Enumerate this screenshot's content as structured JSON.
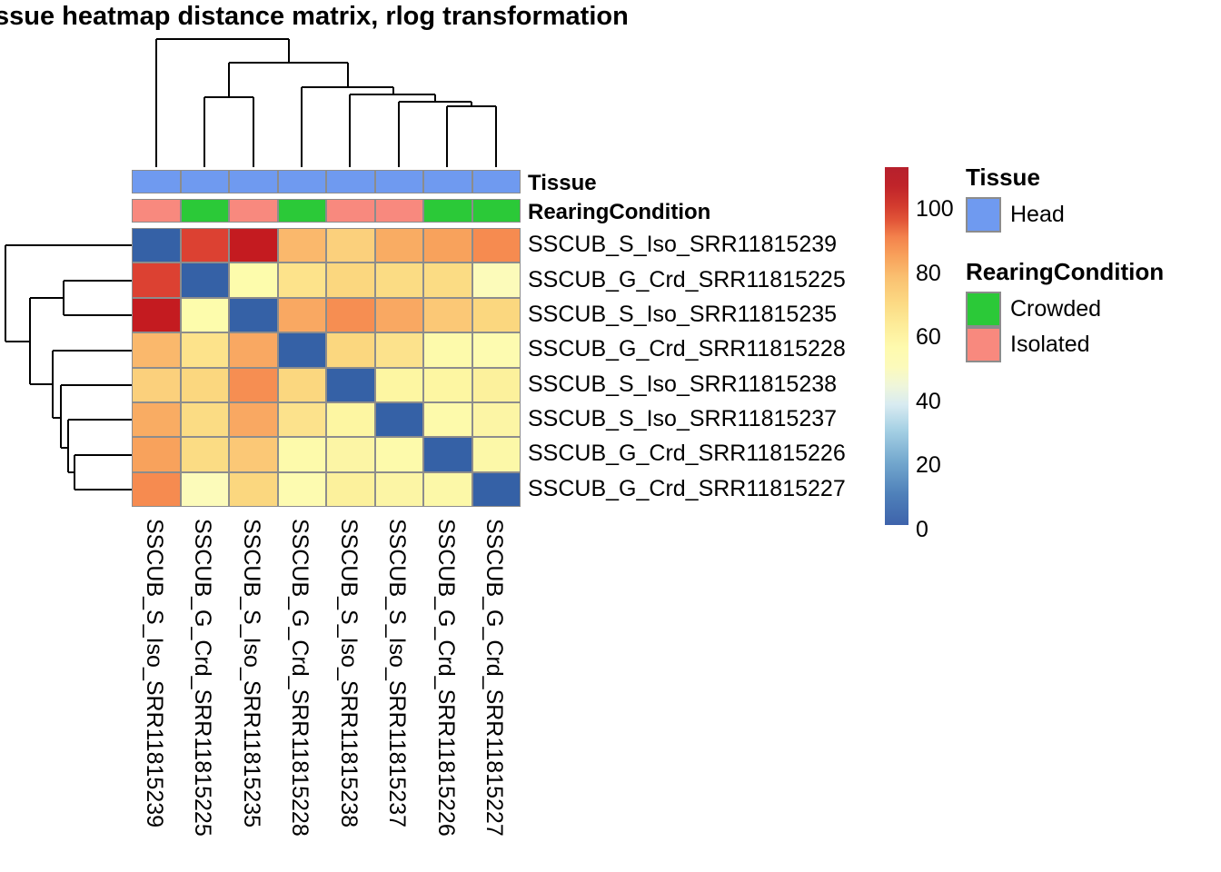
{
  "title": "ssue heatmap distance matrix, rlog transformation",
  "chart_data": {
    "type": "heatmap",
    "title": "ssue heatmap distance matrix, rlog transformation",
    "rows": [
      "SSCUB_S_Iso_SRR11815239",
      "SSCUB_G_Crd_SRR11815225",
      "SSCUB_S_Iso_SRR11815235",
      "SSCUB_G_Crd_SRR11815228",
      "SSCUB_S_Iso_SRR11815238",
      "SSCUB_S_Iso_SRR11815237",
      "SSCUB_G_Crd_SRR11815226",
      "SSCUB_G_Crd_SRR11815227"
    ],
    "columns": [
      "SSCUB_S_Iso_SRR11815239",
      "SSCUB_G_Crd_SRR11815225",
      "SSCUB_S_Iso_SRR11815235",
      "SSCUB_G_Crd_SRR11815228",
      "SSCUB_S_Iso_SRR11815238",
      "SSCUB_S_Iso_SRR11815237",
      "SSCUB_G_Crd_SRR11815226",
      "SSCUB_G_Crd_SRR11815227"
    ],
    "matrix": [
      [
        0,
        95,
        103,
        71,
        63,
        74,
        77,
        83
      ],
      [
        95,
        0,
        49,
        59,
        62,
        60,
        60,
        47
      ],
      [
        103,
        49,
        0,
        75,
        82,
        75,
        66,
        62
      ],
      [
        71,
        59,
        75,
        0,
        62,
        58,
        50,
        49
      ],
      [
        63,
        62,
        82,
        62,
        0,
        52,
        52,
        53
      ],
      [
        74,
        60,
        75,
        58,
        52,
        0,
        50,
        51
      ],
      [
        77,
        60,
        66,
        50,
        52,
        50,
        0,
        50
      ],
      [
        83,
        47,
        62,
        49,
        53,
        51,
        50,
        0
      ]
    ],
    "cell_colors": [
      [
        "#3561A6",
        "#DC4132",
        "#C41B20",
        "#FAB86C",
        "#FBD07C",
        "#F9AC63",
        "#F8A25C",
        "#F68B50"
      ],
      [
        "#DC4132",
        "#3561A6",
        "#FDFCAC",
        "#FDE38B",
        "#FBD77F",
        "#FBDC84",
        "#FBDC84",
        "#FCFBBA"
      ],
      [
        "#C41B20",
        "#FDFCAC",
        "#3561A6",
        "#F9A862",
        "#F68E52",
        "#F9A862",
        "#FBC876",
        "#FBD77F"
      ],
      [
        "#FAB86C",
        "#FDE38B",
        "#F9A862",
        "#3561A6",
        "#FBD77F",
        "#FCE28C",
        "#FDFAAB",
        "#FDFBB0"
      ],
      [
        "#FBD07C",
        "#FBD77F",
        "#F68E52",
        "#FBD77F",
        "#3561A6",
        "#FDF6A2",
        "#FDF6A2",
        "#FCF19C"
      ],
      [
        "#F9AC63",
        "#FBDC84",
        "#F9A862",
        "#FCE28C",
        "#FDF6A2",
        "#3561A6",
        "#FDFAAB",
        "#FCF5A5"
      ],
      [
        "#F8A25C",
        "#FBDC84",
        "#FBC876",
        "#FDFAAB",
        "#FCF5A5",
        "#FDFAAB",
        "#3561A6",
        "#FCF8A8"
      ],
      [
        "#F68B50",
        "#FCFBBA",
        "#FBD77F",
        "#FDFBB0",
        "#FCF19C",
        "#FCF5A5",
        "#FCF8A8",
        "#3561A6"
      ]
    ],
    "annotations": {
      "tissue": {
        "label": "Tissue",
        "values": [
          "Head",
          "Head",
          "Head",
          "Head",
          "Head",
          "Head",
          "Head",
          "Head"
        ],
        "colors": {
          "Head": "#6F9AF0"
        }
      },
      "rearing": {
        "label": "RearingCondition",
        "values": [
          "Isolated",
          "Crowded",
          "Isolated",
          "Crowded",
          "Isolated",
          "Isolated",
          "Crowded",
          "Crowded"
        ],
        "colors": {
          "Crowded": "#2BC938",
          "Isolated": "#F8897E"
        }
      }
    },
    "legend": {
      "tissue": {
        "title": "Tissue",
        "items": [
          {
            "label": "Head",
            "color": "#6F9AF0"
          }
        ]
      },
      "rearing": {
        "title": "RearingCondition",
        "items": [
          {
            "label": "Crowded",
            "color": "#2BC938"
          },
          {
            "label": "Isolated",
            "color": "#F8897E"
          }
        ]
      }
    },
    "colorbar": {
      "ticks": [
        0,
        20,
        40,
        60,
        80,
        100
      ],
      "vmax": 113,
      "gradient": [
        [
          0,
          "#3E63AB"
        ],
        [
          10,
          "#4F81BA"
        ],
        [
          20,
          "#74A8CE"
        ],
        [
          30,
          "#A5D0E4"
        ],
        [
          38,
          "#D8EBF1"
        ],
        [
          44,
          "#EFF6DA"
        ],
        [
          50,
          "#FCFABB"
        ],
        [
          56,
          "#FEFAAE"
        ],
        [
          63,
          "#FDEC99"
        ],
        [
          70,
          "#FCDA84"
        ],
        [
          78,
          "#FAC171"
        ],
        [
          85,
          "#F8A15B"
        ],
        [
          91,
          "#F3824C"
        ],
        [
          96,
          "#E25638"
        ],
        [
          101,
          "#D23A2E"
        ],
        [
          107,
          "#C0242A"
        ],
        [
          113,
          "#B6202C"
        ]
      ]
    },
    "dendrograms": {
      "col_segments": [
        [
          172,
          184,
          172,
          43
        ],
        [
          172,
          43,
          318,
          43
        ],
        [
          318,
          43,
          318,
          69
        ],
        [
          252,
          69,
          383,
          69
        ],
        [
          252,
          69,
          252,
          107
        ],
        [
          383,
          69,
          383,
          96
        ],
        [
          225,
          107,
          279,
          107
        ],
        [
          225,
          107,
          225,
          184
        ],
        [
          279,
          107,
          279,
          184
        ],
        [
          332,
          96,
          433,
          96
        ],
        [
          332,
          96,
          332,
          184
        ],
        [
          433,
          96,
          433,
          104
        ],
        [
          385,
          104,
          479,
          104
        ],
        [
          385,
          104,
          385,
          184
        ],
        [
          479,
          104,
          479,
          112
        ],
        [
          439,
          112,
          519,
          112
        ],
        [
          439,
          112,
          439,
          184
        ],
        [
          519,
          112,
          519,
          117
        ],
        [
          492,
          117,
          546,
          117
        ],
        [
          492,
          117,
          492,
          184
        ],
        [
          546,
          117,
          546,
          184
        ]
      ],
      "row_segments": [
        [
          146,
          270,
          6,
          270
        ],
        [
          6,
          270,
          6,
          376
        ],
        [
          6,
          376,
          33,
          376
        ],
        [
          33,
          328,
          33,
          423
        ],
        [
          33,
          328,
          70,
          328
        ],
        [
          33,
          423,
          58,
          423
        ],
        [
          70,
          309,
          70,
          347
        ],
        [
          70,
          309,
          146,
          309
        ],
        [
          70,
          347,
          146,
          347
        ],
        [
          58,
          386,
          58,
          460
        ],
        [
          58,
          386,
          146,
          386
        ],
        [
          58,
          460,
          67,
          460
        ],
        [
          67,
          424,
          67,
          493
        ],
        [
          67,
          424,
          146,
          424
        ],
        [
          67,
          493,
          75,
          493
        ],
        [
          75,
          462,
          75,
          520
        ],
        [
          75,
          462,
          146,
          462
        ],
        [
          75,
          520,
          82,
          520
        ],
        [
          82,
          501,
          82,
          539
        ],
        [
          82,
          501,
          146,
          501
        ],
        [
          82,
          539,
          146,
          539
        ]
      ]
    }
  }
}
